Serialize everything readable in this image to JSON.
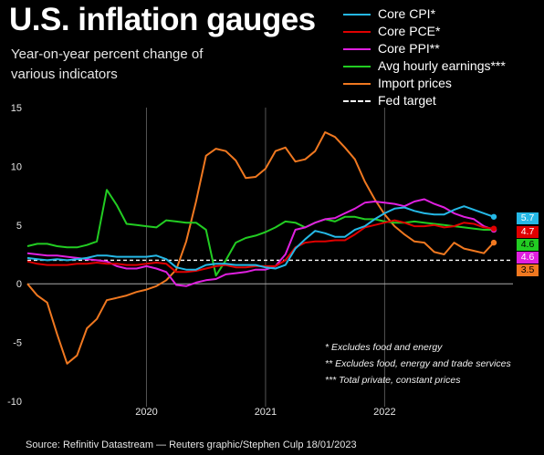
{
  "header": {
    "title": "U.S. inflation gauges",
    "subtitle": "Year-on-year percent change of various indicators"
  },
  "legend": [
    {
      "label": "Core CPI*",
      "color": "#25b8e6",
      "dashed": false
    },
    {
      "label": "Core PCE*",
      "color": "#e00000",
      "dashed": false
    },
    {
      "label": "Core PPI**",
      "color": "#e020e0",
      "dashed": false
    },
    {
      "label": "Avg hourly earnings***",
      "color": "#22cc22",
      "dashed": false
    },
    {
      "label": "Import prices",
      "color": "#f07820",
      "dashed": false
    },
    {
      "label": "Fed target",
      "color": "#ffffff",
      "dashed": true
    }
  ],
  "notes": [
    "* Excludes food and energy",
    "** Excludes food, energy and trade services",
    "*** Total private, constant prices"
  ],
  "source": "Source: Refinitiv Datastream — Reuters graphic/Stephen Culp 18/01/2023",
  "badges": [
    {
      "label": "5.7",
      "color": "#25b8e6",
      "text_color": "#ffffff"
    },
    {
      "label": "4.7",
      "color": "#e00000",
      "text_color": "#ffffff"
    },
    {
      "label": "4.6",
      "color": "#22cc22",
      "text_color": "#000000"
    },
    {
      "label": "4.6",
      "color": "#e020e0",
      "text_color": "#ffffff"
    },
    {
      "label": "3.5",
      "color": "#f07820",
      "text_color": "#000000"
    }
  ],
  "chart_data": {
    "type": "line",
    "x_start": "2019-01",
    "x_end": "2022-12",
    "xticks": [
      {
        "label": "2020",
        "date": "2020-01"
      },
      {
        "label": "2021",
        "date": "2021-01"
      },
      {
        "label": "2022",
        "date": "2022-01"
      }
    ],
    "ylim": [
      -10,
      15
    ],
    "yticks": [
      -10,
      -5,
      0,
      5,
      10,
      15
    ],
    "grid": "vertical",
    "fed_target": 2,
    "series": [
      {
        "name": "Core CPI*",
        "color": "#25b8e6",
        "start": "2019-01",
        "values": [
          2.2,
          2.1,
          2.0,
          2.1,
          2.0,
          2.1,
          2.2,
          2.4,
          2.4,
          2.3,
          2.3,
          2.3,
          2.3,
          2.4,
          2.1,
          1.4,
          1.2,
          1.2,
          1.6,
          1.7,
          1.7,
          1.6,
          1.6,
          1.6,
          1.4,
          1.3,
          1.6,
          3.0,
          3.8,
          4.5,
          4.3,
          4.0,
          4.0,
          4.6,
          4.9,
          5.5,
          6.0,
          6.4,
          6.5,
          6.2,
          6.0,
          5.9,
          5.9,
          6.3,
          6.6,
          6.3,
          6.0,
          5.7
        ]
      },
      {
        "name": "Core PCE*",
        "color": "#e00000",
        "start": "2019-01",
        "values": [
          1.9,
          1.7,
          1.6,
          1.6,
          1.6,
          1.7,
          1.7,
          1.8,
          1.7,
          1.7,
          1.6,
          1.6,
          1.7,
          1.8,
          1.7,
          1.0,
          1.0,
          1.1,
          1.3,
          1.5,
          1.6,
          1.4,
          1.4,
          1.5,
          1.5,
          1.5,
          2.0,
          3.1,
          3.5,
          3.6,
          3.6,
          3.7,
          3.7,
          4.2,
          4.8,
          5.0,
          5.2,
          5.4,
          5.2,
          4.9,
          4.9,
          5.0,
          4.8,
          4.9,
          5.2,
          5.1,
          4.8,
          4.7
        ]
      },
      {
        "name": "Core PPI**",
        "color": "#e020e0",
        "start": "2019-01",
        "values": [
          2.6,
          2.5,
          2.4,
          2.4,
          2.3,
          2.2,
          2.1,
          2.0,
          1.9,
          1.5,
          1.3,
          1.3,
          1.5,
          1.3,
          1.0,
          -0.1,
          -0.2,
          0.1,
          0.3,
          0.4,
          0.8,
          0.9,
          1.0,
          1.2,
          1.2,
          1.5,
          2.5,
          4.6,
          4.8,
          5.2,
          5.5,
          5.6,
          6.0,
          6.4,
          6.9,
          7.0,
          6.9,
          6.8,
          6.6,
          7.0,
          7.2,
          6.8,
          6.5,
          6.0,
          5.7,
          5.5,
          4.9,
          4.6
        ]
      },
      {
        "name": "Avg hourly earnings***",
        "color": "#22cc22",
        "start": "2019-01",
        "values": [
          3.2,
          3.4,
          3.4,
          3.2,
          3.1,
          3.1,
          3.3,
          3.6,
          8.0,
          6.7,
          5.1,
          5.0,
          4.9,
          4.8,
          5.4,
          5.3,
          5.2,
          5.2,
          4.6,
          0.7,
          2.0,
          3.5,
          3.9,
          4.1,
          4.4,
          4.8,
          5.3,
          5.2,
          4.8,
          5.2,
          5.5,
          5.3,
          5.7,
          5.7,
          5.5,
          5.5,
          5.3,
          5.2,
          5.2,
          5.3,
          5.2,
          5.1,
          5.0,
          4.9,
          4.8,
          4.7,
          4.6,
          4.6
        ]
      },
      {
        "name": "Import prices",
        "color": "#f07820",
        "start": "2019-01",
        "values": [
          0.0,
          -1.0,
          -1.6,
          -4.3,
          -6.8,
          -6.1,
          -3.8,
          -3.0,
          -1.4,
          -1.2,
          -1.0,
          -0.7,
          -0.5,
          -0.2,
          0.3,
          1.2,
          3.6,
          7.0,
          10.9,
          11.5,
          11.3,
          10.5,
          9.0,
          9.1,
          9.8,
          11.3,
          11.6,
          10.4,
          10.6,
          11.3,
          12.9,
          12.5,
          11.6,
          10.6,
          8.7,
          7.2,
          5.9,
          4.9,
          4.2,
          3.6,
          3.5,
          2.7,
          2.5,
          3.5,
          3.0,
          2.8,
          2.6,
          3.5
        ]
      }
    ]
  }
}
